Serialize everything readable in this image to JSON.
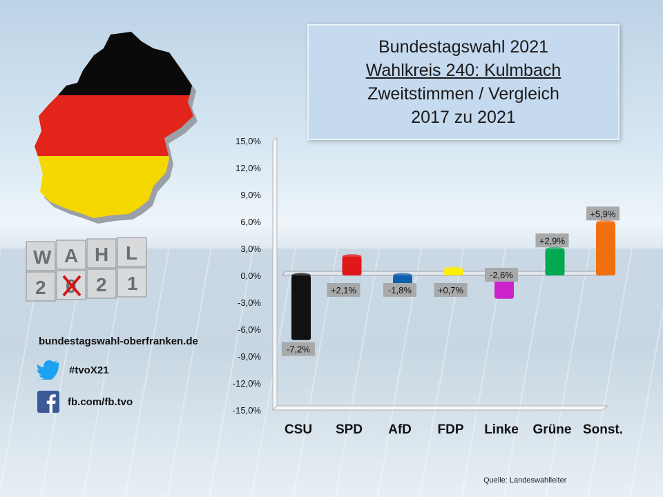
{
  "title": {
    "line1": "Bundestagswahl 2021",
    "line2": "Wahlkreis 240: Kulmbach",
    "line3": "Zweitstimmen / Vergleich",
    "line4": "2017 zu 2021"
  },
  "wahl_logo": {
    "top": [
      "W",
      "A",
      "H",
      "L"
    ],
    "bottom": [
      "2",
      "0",
      "2",
      "1"
    ]
  },
  "social": {
    "website": "bundestagswahl-oberfranken.de",
    "twitter": "#tvoX21",
    "facebook": "fb.com/fb.tvo"
  },
  "source": "Quelle: Landeswahlleiter",
  "chart_data": {
    "type": "bar",
    "categories": [
      "CSU",
      "SPD",
      "AfD",
      "FDP",
      "Linke",
      "Grüne",
      "Sonst."
    ],
    "values": [
      -7.2,
      2.1,
      -1.8,
      0.7,
      -2.6,
      2.9,
      5.9
    ],
    "labels": [
      "-7,2%",
      "+2,1%",
      "-1,8%",
      "+0,7%",
      "-2,6%",
      "+2,9%",
      "+5,9%"
    ],
    "colors": [
      "#111111",
      "#e01818",
      "#1060b0",
      "#ffee00",
      "#cc22cc",
      "#00a850",
      "#f07010"
    ],
    "ylim": [
      -15,
      15
    ],
    "yticks": [
      15,
      12,
      9,
      6,
      3,
      0,
      -3,
      -6,
      -9,
      -12,
      -15
    ],
    "ytick_labels": [
      "15,0%",
      "12,0%",
      "9,0%",
      "6,0%",
      "3,0%",
      "0,0%",
      "-3,0%",
      "-6,0%",
      "-9,0%",
      "-12,0%",
      "-15,0%"
    ],
    "grid": false,
    "title": "",
    "xlabel": "",
    "ylabel": ""
  }
}
